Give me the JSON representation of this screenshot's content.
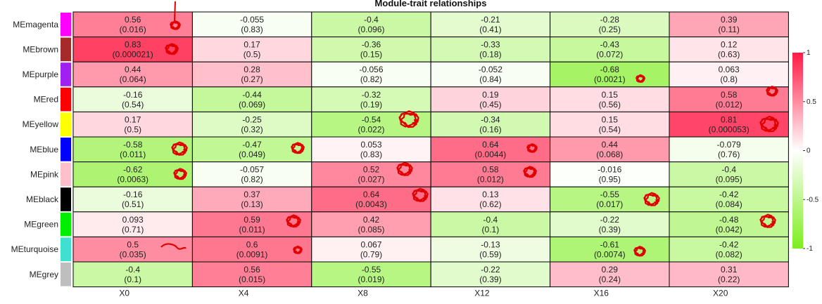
{
  "chart_data": {
    "type": "heatmap",
    "title": "Module-trait relationships",
    "columns": [
      "X0",
      "X4",
      "X8",
      "X12",
      "X16",
      "X20"
    ],
    "rows": [
      {
        "name": "MEmagenta",
        "color": "#FF00FF",
        "values": [
          0.56,
          -0.055,
          -0.4,
          -0.21,
          -0.28,
          0.39
        ],
        "labels": [
          "0.56",
          "-0.055",
          "-0.4",
          "-0.21",
          "-0.28",
          "0.39"
        ],
        "pvalues": [
          "(0.016)",
          "(0.83)",
          "(0.096)",
          "(0.41)",
          "(0.25)",
          "(0.11)"
        ]
      },
      {
        "name": "MEbrown",
        "color": "#A52A2A",
        "values": [
          0.83,
          0.17,
          -0.36,
          -0.33,
          -0.43,
          0.12
        ],
        "labels": [
          "0.83",
          "0.17",
          "-0.36",
          "-0.33",
          "-0.43",
          "0.12"
        ],
        "pvalues": [
          "(0.000021)",
          "(0.5)",
          "(0.15)",
          "(0.18)",
          "(0.072)",
          "(0.63)"
        ]
      },
      {
        "name": "MEpurple",
        "color": "#A020F0",
        "values": [
          0.44,
          0.28,
          -0.056,
          -0.052,
          -0.68,
          0.063
        ],
        "labels": [
          "0.44",
          "0.28",
          "-0.056",
          "-0.052",
          "-0.68",
          "0.063"
        ],
        "pvalues": [
          "(0.064)",
          "(0.27)",
          "(0.82)",
          "(0.84)",
          "(0.0021)",
          "(0.8)"
        ]
      },
      {
        "name": "MEred",
        "color": "#FF0000",
        "values": [
          -0.16,
          -0.44,
          -0.32,
          0.19,
          0.15,
          0.58
        ],
        "labels": [
          "-0.16",
          "-0.44",
          "-0.32",
          "0.19",
          "0.15",
          "0.58"
        ],
        "pvalues": [
          "(0.54)",
          "(0.069)",
          "(0.19)",
          "(0.45)",
          "(0.56)",
          "(0.012)"
        ]
      },
      {
        "name": "MEyellow",
        "color": "#FFFF00",
        "values": [
          0.17,
          -0.25,
          -0.54,
          -0.34,
          0.15,
          0.81
        ],
        "labels": [
          "0.17",
          "-0.25",
          "-0.54",
          "-0.34",
          "0.15",
          "0.81"
        ],
        "pvalues": [
          "(0.5)",
          "(0.32)",
          "(0.022)",
          "(0.16)",
          "(0.54)",
          "(0.000053)"
        ]
      },
      {
        "name": "MEblue",
        "color": "#0000FF",
        "values": [
          -0.58,
          -0.47,
          0.053,
          0.64,
          0.44,
          -0.079
        ],
        "labels": [
          "-0.58",
          "-0.47",
          "0.053",
          "0.64",
          "0.44",
          "-0.079"
        ],
        "pvalues": [
          "(0.011)",
          "(0.049)",
          "(0.83)",
          "(0.0044)",
          "(0.068)",
          "(0.76)"
        ]
      },
      {
        "name": "MEpink",
        "color": "#FFC0CB",
        "values": [
          -0.62,
          -0.057,
          0.52,
          0.58,
          -0.016,
          -0.4
        ],
        "labels": [
          "-0.62",
          "-0.057",
          "0.52",
          "0.58",
          "-0.016",
          "-0.4"
        ],
        "pvalues": [
          "(0.0063)",
          "(0.82)",
          "(0.027)",
          "(0.012)",
          "(0.95)",
          "(0.095)"
        ]
      },
      {
        "name": "MEblack",
        "color": "#000000",
        "values": [
          -0.16,
          0.37,
          0.64,
          0.13,
          -0.55,
          -0.42
        ],
        "labels": [
          "-0.16",
          "0.37",
          "0.64",
          "0.13",
          "-0.55",
          "-0.42"
        ],
        "pvalues": [
          "(0.51)",
          "(0.13)",
          "(0.0043)",
          "(0.62)",
          "(0.017)",
          "(0.084)"
        ]
      },
      {
        "name": "MEgreen",
        "color": "#00EE00",
        "values": [
          0.093,
          0.59,
          0.42,
          -0.4,
          -0.22,
          -0.48
        ],
        "labels": [
          "0.093",
          "0.59",
          "0.42",
          "-0.4",
          "-0.22",
          "-0.48"
        ],
        "pvalues": [
          "(0.71)",
          "(0.011)",
          "(0.085)",
          "(0.1)",
          "(0.39)",
          "(0.042)"
        ]
      },
      {
        "name": "MEturquoise",
        "color": "#40E0D0",
        "values": [
          0.5,
          0.6,
          0.067,
          -0.13,
          -0.61,
          -0.42
        ],
        "labels": [
          "0.5",
          "0.6",
          "0.067",
          "-0.13",
          "-0.61",
          "-0.42"
        ],
        "pvalues": [
          "(0.035)",
          "(0.0091)",
          "(0.79)",
          "(0.59)",
          "(0.0074)",
          "(0.082)"
        ]
      },
      {
        "name": "MEgrey",
        "color": "#BEBEBE",
        "values": [
          -0.4,
          0.56,
          -0.55,
          -0.22,
          0.29,
          0.31
        ],
        "labels": [
          "-0.4",
          "0.56",
          "-0.55",
          "-0.22",
          "0.29",
          "0.31"
        ],
        "pvalues": [
          "(0.1)",
          "(0.015)",
          "(0.019)",
          "(0.39)",
          "(0.24)",
          "(0.22)"
        ]
      }
    ],
    "color_scale": {
      "min": -1,
      "max": 1,
      "low_color": "#7CEE1C",
      "mid_color": "#FFFFFF",
      "high_color": "#FF1A44"
    },
    "legend": {
      "placement": "right",
      "ticks": [
        "1",
        "0.5",
        "0",
        "-0.5",
        "-1"
      ],
      "tick_values": [
        1,
        0.5,
        0,
        -0.5,
        -1
      ]
    },
    "annotation_color": "#E00000"
  }
}
